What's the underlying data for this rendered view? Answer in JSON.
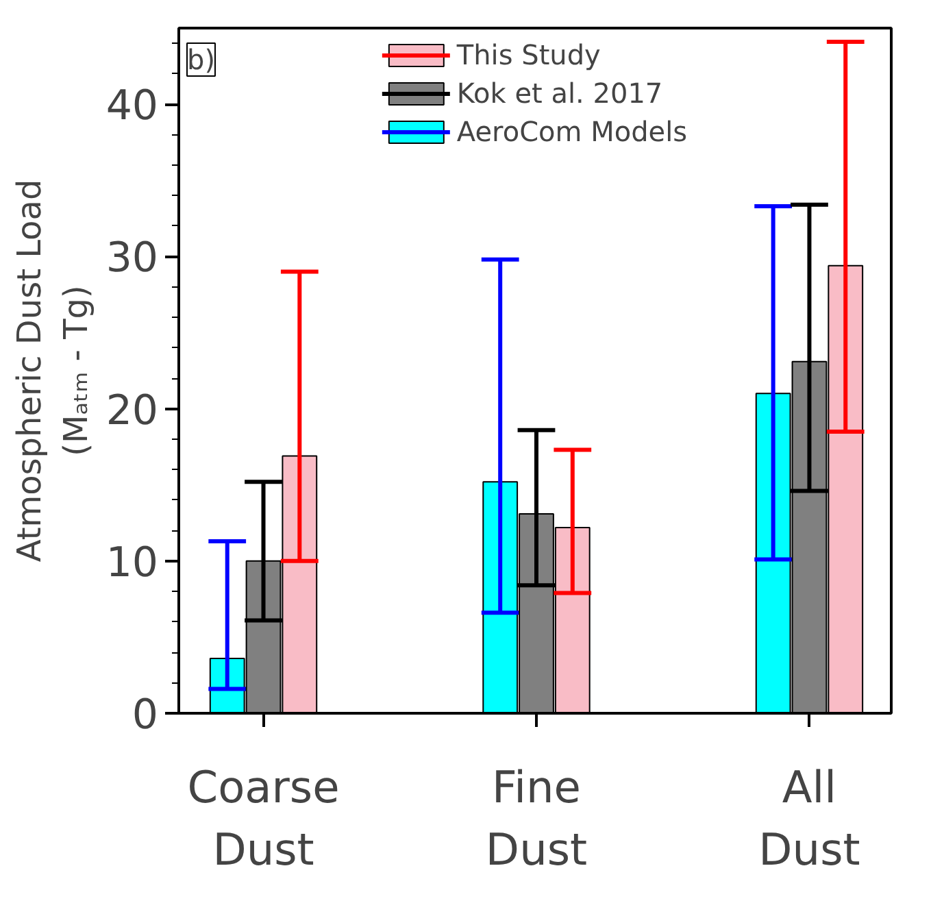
{
  "chart_data": {
    "type": "bar",
    "ylabel": "Atmospheric Dust Load\n(Mₐₜₘ - Tg)",
    "categories": [
      "Coarse\nDust",
      "Fine\nDust",
      "All\nDust"
    ],
    "series": [
      {
        "name": "AeroCom Models",
        "color": "#00ffff",
        "values": [
          3.6,
          15.2,
          21.0
        ],
        "errors": [
          [
            1.6,
            11.3
          ],
          [
            6.6,
            29.8
          ],
          [
            10.1,
            33.3
          ]
        ]
      },
      {
        "name": "Kok et al. 2017",
        "color": "#808080",
        "values": [
          10.0,
          13.1,
          23.1
        ],
        "errors": [
          [
            6.1,
            15.2
          ],
          [
            8.4,
            18.6
          ],
          [
            14.6,
            33.4
          ]
        ]
      },
      {
        "name": "This Study",
        "color": "#f9bcc6",
        "values": [
          16.9,
          12.2,
          29.4
        ],
        "errors": [
          [
            10.0,
            29.0
          ],
          [
            7.9,
            17.3
          ],
          [
            18.5,
            44.1
          ]
        ]
      }
    ],
    "ylim": [
      0,
      45
    ],
    "yticks": [
      0,
      {
        "value": 2,
        "label": null
      },
      {
        "value": 4,
        "label": null
      },
      {
        "value": 6,
        "label": null
      },
      {
        "value": 8,
        "label": null
      },
      10,
      {
        "value": 12,
        "label": null
      },
      {
        "value": 14,
        "label": null
      },
      {
        "value": 16,
        "label": null
      },
      {
        "value": 18,
        "label": null
      },
      20,
      {
        "value": 22,
        "label": null
      },
      {
        "value": 24,
        "label": null
      },
      {
        "value": 26,
        "label": null
      },
      {
        "value": 28,
        "label": null
      },
      30,
      {
        "value": 32,
        "label": null
      },
      {
        "value": 34,
        "label": null
      },
      {
        "value": 36,
        "label": null
      },
      {
        "value": 38,
        "label": null
      },
      40,
      {
        "value": 42,
        "label": null
      },
      {
        "value": 44,
        "label": null
      }
    ],
    "annotations": [
      "b)"
    ],
    "legend": "top",
    "grid": false
  }
}
